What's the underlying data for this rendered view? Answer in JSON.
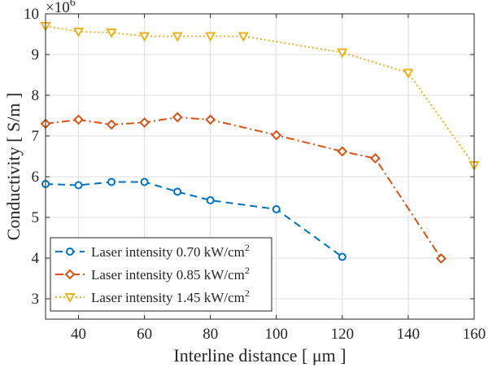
{
  "chart_data": {
    "type": "line",
    "title": "",
    "xlabel": "Interline distance [ μm ]",
    "ylabel": "Conductivity  [ S/m ]",
    "y_multiplier_base": "×10",
    "y_multiplier_exponent": "6",
    "xlim": [
      30,
      160
    ],
    "ylim": [
      2.5,
      10
    ],
    "xticks": [
      40,
      60,
      80,
      100,
      120,
      140,
      160
    ],
    "yticks": [
      3,
      4,
      5,
      6,
      7,
      8,
      9,
      10
    ],
    "grid": true,
    "legend_position": "bottom-left",
    "series": [
      {
        "name": "Laser intensity 0.70 kW/cm",
        "name_superscript": "2",
        "color": "#0072BD",
        "line_style": "dashed",
        "marker": "circle",
        "x": [
          30,
          40,
          50,
          60,
          70,
          80,
          100,
          120
        ],
        "y": [
          5.82,
          5.79,
          5.87,
          5.87,
          5.63,
          5.42,
          5.2,
          4.03
        ]
      },
      {
        "name": "Laser intensity 0.85 kW/cm",
        "name_superscript": "2",
        "color": "#D95319",
        "line_style": "dashdot",
        "marker": "diamond",
        "x": [
          30,
          40,
          50,
          60,
          70,
          80,
          100,
          120,
          130,
          150
        ],
        "y": [
          7.3,
          7.4,
          7.28,
          7.33,
          7.46,
          7.4,
          7.02,
          6.62,
          6.45,
          3.99
        ]
      },
      {
        "name": "Laser intensity 1.45 kW/cm",
        "name_superscript": "2",
        "color": "#EDB120",
        "line_style": "dotted",
        "marker": "triangle-down",
        "x": [
          30,
          40,
          50,
          60,
          70,
          80,
          90,
          120,
          140,
          160
        ],
        "y": [
          9.7,
          9.56,
          9.54,
          9.45,
          9.45,
          9.45,
          9.45,
          9.05,
          8.55,
          6.28
        ]
      }
    ]
  }
}
